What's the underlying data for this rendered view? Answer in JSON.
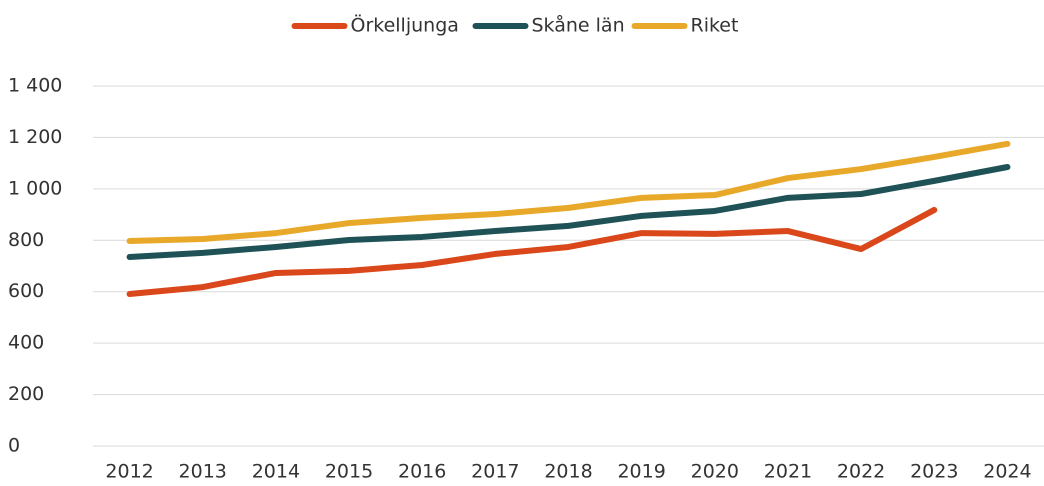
{
  "chart_data": {
    "type": "line",
    "categories": [
      "2012",
      "2013",
      "2014",
      "2015",
      "2016",
      "2017",
      "2018",
      "2019",
      "2020",
      "2021",
      "2022",
      "2023",
      "2024"
    ],
    "series": [
      {
        "name": "Örkelljunga",
        "color": "#d9471b",
        "values": [
          591,
          618,
          673,
          681,
          704,
          747,
          774,
          828,
          825,
          836,
          766,
          918,
          null
        ]
      },
      {
        "name": "Skåne län",
        "color": "#1f5257",
        "values": [
          735,
          751,
          774,
          801,
          813,
          836,
          856,
          895,
          914,
          965,
          980,
          1031,
          1085
        ]
      },
      {
        "name": "Riket",
        "color": "#e8a92a",
        "values": [
          797,
          805,
          828,
          867,
          887,
          902,
          926,
          965,
          976,
          1042,
          1077,
          1124,
          1175
        ]
      }
    ],
    "ylim": [
      0,
      1400
    ],
    "yticks": [
      0,
      200,
      400,
      600,
      800,
      {
        "value": 1000,
        "label": "1 000"
      },
      {
        "value": 1200,
        "label": "1 200"
      },
      {
        "value": 1400,
        "label": "1 400"
      }
    ],
    "grid": true,
    "legend": "top"
  }
}
